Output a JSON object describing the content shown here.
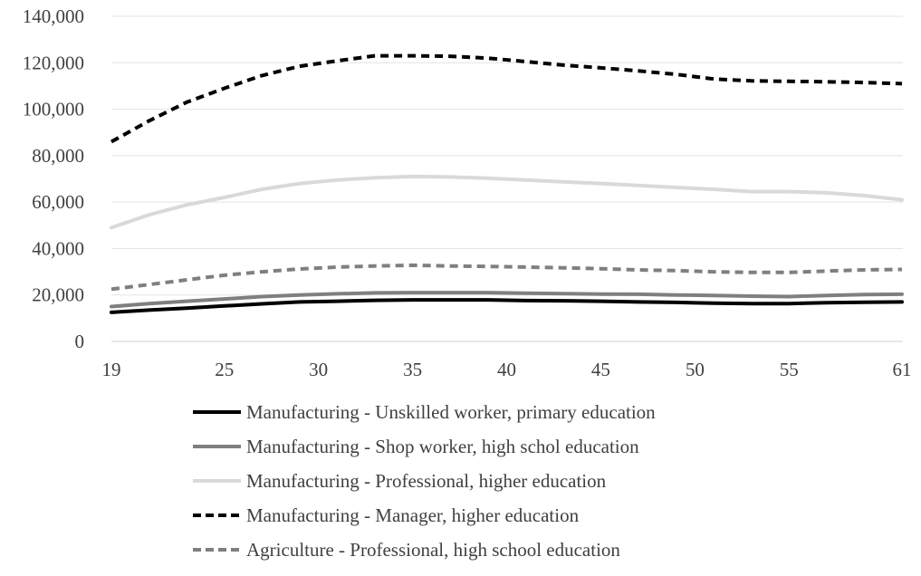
{
  "chart_data": {
    "type": "line",
    "title": "",
    "xlabel": "",
    "ylabel": "",
    "xlim": [
      19,
      61
    ],
    "ylim": [
      0,
      140000
    ],
    "x_ticks": [
      {
        "value": 19,
        "label": "19"
      },
      {
        "value": 25,
        "label": "25"
      },
      {
        "value": 30,
        "label": "30"
      },
      {
        "value": 35,
        "label": "35"
      },
      {
        "value": 40,
        "label": "40"
      },
      {
        "value": 45,
        "label": "45"
      },
      {
        "value": 50,
        "label": "50"
      },
      {
        "value": 55,
        "label": "55"
      },
      {
        "value": 61,
        "label": "61"
      }
    ],
    "y_ticks": [
      {
        "value": 0,
        "label": "0"
      },
      {
        "value": 20000,
        "label": "20,000"
      },
      {
        "value": 40000,
        "label": "40,000"
      },
      {
        "value": 60000,
        "label": "60,000"
      },
      {
        "value": 80000,
        "label": "80,000"
      },
      {
        "value": 100000,
        "label": "100,000"
      },
      {
        "value": 120000,
        "label": "120,000"
      },
      {
        "value": 140000,
        "label": "140,000"
      }
    ],
    "grid": "horizontal",
    "legend_position": "bottom",
    "x": [
      19,
      21,
      23,
      25,
      27,
      29,
      31,
      33,
      35,
      37,
      39,
      41,
      43,
      45,
      47,
      49,
      51,
      53,
      55,
      57,
      59,
      61
    ],
    "series": [
      {
        "name": "Manufacturing - Unskilled worker, primary education",
        "color": "#000000",
        "dash": "solid",
        "values": [
          12500,
          13500,
          14300,
          15300,
          16200,
          17000,
          17300,
          17700,
          17900,
          17900,
          17900,
          17600,
          17500,
          17300,
          17000,
          16800,
          16500,
          16300,
          16300,
          16700,
          16900,
          17000
        ]
      },
      {
        "name": "Manufacturing - Shop worker, high schol education",
        "color": "#7f7f7f",
        "dash": "solid",
        "values": [
          15000,
          16300,
          17300,
          18300,
          19300,
          20000,
          20500,
          20900,
          21000,
          21000,
          21000,
          20800,
          20600,
          20400,
          20300,
          20000,
          19800,
          19500,
          19300,
          19800,
          20200,
          20300
        ]
      },
      {
        "name": "Manufacturing - Professional, higher education",
        "color": "#d9d9d9",
        "dash": "solid",
        "values": [
          49000,
          54500,
          58800,
          62000,
          65500,
          68000,
          69500,
          70500,
          71000,
          70800,
          70300,
          69500,
          68700,
          68000,
          67200,
          66300,
          65500,
          64500,
          64500,
          64000,
          62800,
          61000
        ]
      },
      {
        "name": "Manufacturing - Manager, higher education",
        "color": "#000000",
        "dash": "dashed",
        "values": [
          86000,
          95000,
          103000,
          109000,
          114500,
          118500,
          120800,
          123000,
          123000,
          122800,
          122000,
          120500,
          119000,
          117800,
          116500,
          115000,
          113000,
          112200,
          112000,
          111800,
          111500,
          111000
        ]
      },
      {
        "name": "Agriculture - Professional, high school education",
        "color": "#7f7f7f",
        "dash": "dashed",
        "values": [
          22500,
          24500,
          26500,
          28500,
          30000,
          31200,
          32000,
          32500,
          32800,
          32500,
          32300,
          32000,
          31700,
          31300,
          30800,
          30500,
          30000,
          29700,
          29700,
          30300,
          30800,
          31000
        ]
      }
    ]
  }
}
